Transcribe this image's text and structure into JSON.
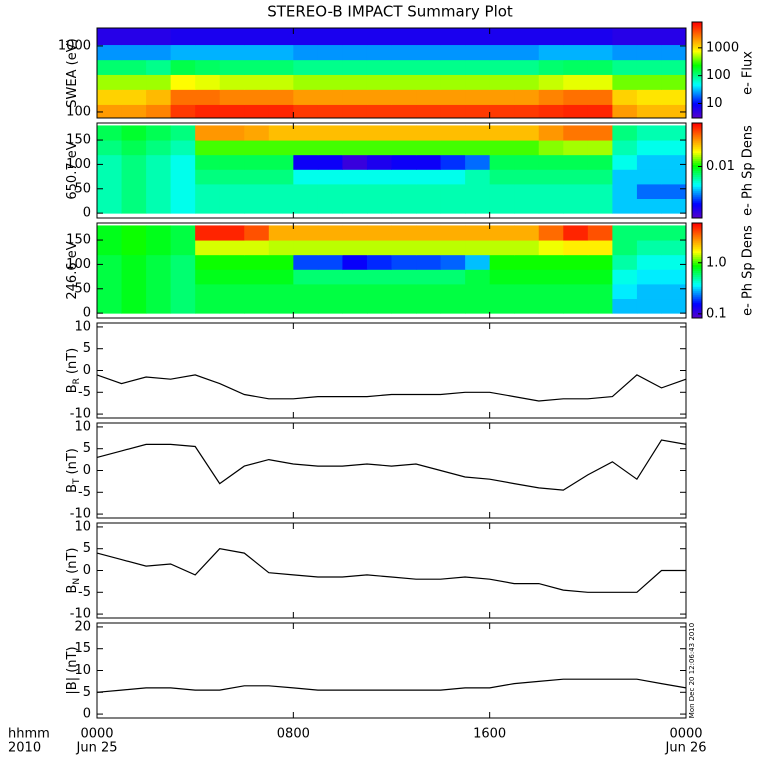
{
  "title": "STEREO-B IMPACT Summary Plot",
  "stamp": "Mon Dec 20 12:06:43 2010",
  "time": {
    "xlim": [
      0,
      24
    ],
    "edges": [
      0,
      1,
      2,
      3,
      4,
      5,
      6,
      7,
      8,
      9,
      10,
      11,
      12,
      13,
      14,
      15,
      16,
      17,
      18,
      19,
      20,
      21,
      22,
      23,
      24
    ],
    "xticks": [
      {
        "value": 0,
        "label": "0000"
      },
      {
        "value": 8,
        "label": "0800"
      },
      {
        "value": 16,
        "label": "1600"
      },
      {
        "value": 24,
        "label": "0000"
      }
    ],
    "dates": [
      "Jun 25",
      "Jun 26"
    ],
    "corner": [
      "hhmm",
      "2010"
    ]
  },
  "chart_data": [
    {
      "type": "heatmap",
      "ylabel": "SWEA (eV)",
      "ylog": true,
      "ylim": [
        81,
        1870
      ],
      "yticks": [
        100,
        1000
      ],
      "ybins": [
        81,
        130,
        220,
        370,
        620,
        1050,
        1870
      ],
      "values": [
        [
          2000,
          2000,
          2500,
          5000,
          6000,
          6000,
          6000,
          6000,
          5000,
          5000,
          5000,
          5000,
          5000,
          5000,
          5000,
          5000,
          5000,
          5000,
          5500,
          6000,
          6000,
          2000,
          1500,
          1500
        ],
        [
          1200,
          1200,
          1500,
          3000,
          3000,
          2500,
          2500,
          2500,
          2000,
          2000,
          2000,
          2000,
          2000,
          2000,
          2000,
          2000,
          2000,
          2000,
          2500,
          3000,
          3000,
          1200,
          1000,
          1000
        ],
        [
          500,
          500,
          500,
          800,
          700,
          600,
          600,
          600,
          500,
          500,
          500,
          500,
          500,
          500,
          500,
          500,
          500,
          500,
          600,
          700,
          700,
          400,
          400,
          400
        ],
        [
          120,
          120,
          100,
          150,
          130,
          120,
          120,
          120,
          100,
          100,
          100,
          100,
          100,
          100,
          100,
          100,
          100,
          100,
          120,
          130,
          130,
          100,
          100,
          100
        ],
        [
          25,
          25,
          25,
          30,
          30,
          30,
          30,
          30,
          25,
          25,
          25,
          25,
          25,
          25,
          25,
          25,
          25,
          25,
          30,
          30,
          30,
          25,
          25,
          25
        ],
        [
          6,
          6,
          6,
          7,
          7,
          7,
          7,
          7,
          7,
          7,
          7,
          7,
          7,
          7,
          7,
          7,
          7,
          7,
          7,
          7,
          7,
          6,
          6,
          6
        ]
      ],
      "clog": true,
      "clim": [
        3,
        8500
      ],
      "cticks": [
        10,
        100,
        1000
      ],
      "clabel": "e- Flux"
    },
    {
      "type": "heatmap",
      "ylabel": "650.7 eV",
      "ylog": false,
      "ylim": [
        -10,
        185
      ],
      "yticks": [
        0,
        50,
        100,
        150
      ],
      "ybins": [
        0,
        30,
        60,
        90,
        120,
        150,
        180
      ],
      "values": [
        [
          0.006,
          0.007,
          0.006,
          0.005,
          0.006,
          0.006,
          0.006,
          0.006,
          0.006,
          0.006,
          0.006,
          0.006,
          0.006,
          0.006,
          0.006,
          0.006,
          0.006,
          0.006,
          0.006,
          0.006,
          0.006,
          0.004,
          0.004,
          0.004
        ],
        [
          0.006,
          0.007,
          0.006,
          0.005,
          0.006,
          0.006,
          0.006,
          0.006,
          0.006,
          0.006,
          0.006,
          0.006,
          0.006,
          0.006,
          0.006,
          0.006,
          0.006,
          0.006,
          0.006,
          0.006,
          0.006,
          0.004,
          0.003,
          0.003
        ],
        [
          0.006,
          0.007,
          0.006,
          0.005,
          0.007,
          0.007,
          0.007,
          0.007,
          0.005,
          0.005,
          0.005,
          0.005,
          0.005,
          0.005,
          0.005,
          0.006,
          0.007,
          0.007,
          0.007,
          0.007,
          0.007,
          0.004,
          0.004,
          0.004
        ],
        [
          0.006,
          0.007,
          0.006,
          0.005,
          0.008,
          0.008,
          0.008,
          0.008,
          0.002,
          0.002,
          0.0015,
          0.0018,
          0.002,
          0.002,
          0.0025,
          0.003,
          0.008,
          0.008,
          0.008,
          0.008,
          0.008,
          0.005,
          0.004,
          0.004
        ],
        [
          0.007,
          0.008,
          0.007,
          0.006,
          0.012,
          0.012,
          0.012,
          0.012,
          0.012,
          0.012,
          0.012,
          0.012,
          0.012,
          0.012,
          0.012,
          0.012,
          0.012,
          0.012,
          0.014,
          0.015,
          0.015,
          0.006,
          0.005,
          0.005
        ],
        [
          0.008,
          0.009,
          0.008,
          0.007,
          0.03,
          0.03,
          0.028,
          0.025,
          0.025,
          0.025,
          0.025,
          0.025,
          0.025,
          0.025,
          0.025,
          0.025,
          0.025,
          0.025,
          0.03,
          0.035,
          0.035,
          0.007,
          0.006,
          0.006
        ]
      ],
      "clog": true,
      "clim": [
        0.0012,
        0.06
      ],
      "cticks": [
        0.01
      ],
      "clabel": "e- Ph Sp Dens"
    },
    {
      "type": "heatmap",
      "ylabel": "246.6 eV",
      "ylog": false,
      "ylim": [
        -10,
        185
      ],
      "yticks": [
        0,
        50,
        100,
        150
      ],
      "ybins": [
        0,
        30,
        60,
        90,
        120,
        150,
        180
      ],
      "values": [
        [
          0.7,
          0.8,
          0.7,
          0.6,
          0.7,
          0.7,
          0.7,
          0.7,
          0.7,
          0.7,
          0.7,
          0.7,
          0.7,
          0.7,
          0.7,
          0.7,
          0.7,
          0.7,
          0.7,
          0.7,
          0.7,
          0.3,
          0.3,
          0.3
        ],
        [
          0.7,
          0.8,
          0.7,
          0.6,
          0.7,
          0.7,
          0.7,
          0.7,
          0.7,
          0.7,
          0.7,
          0.7,
          0.7,
          0.7,
          0.7,
          0.7,
          0.7,
          0.7,
          0.7,
          0.7,
          0.7,
          0.35,
          0.3,
          0.3
        ],
        [
          0.7,
          0.8,
          0.7,
          0.6,
          0.8,
          0.8,
          0.8,
          0.8,
          0.6,
          0.6,
          0.6,
          0.6,
          0.6,
          0.6,
          0.6,
          0.7,
          0.8,
          0.8,
          0.8,
          0.8,
          0.8,
          0.4,
          0.35,
          0.35
        ],
        [
          0.7,
          0.8,
          0.7,
          0.6,
          0.9,
          0.9,
          0.9,
          0.9,
          0.2,
          0.2,
          0.15,
          0.18,
          0.2,
          0.2,
          0.22,
          0.3,
          0.9,
          0.9,
          0.9,
          0.9,
          0.9,
          0.5,
          0.4,
          0.4
        ],
        [
          0.8,
          0.9,
          0.8,
          0.7,
          1.5,
          1.5,
          1.5,
          1.4,
          1.4,
          1.4,
          1.4,
          1.4,
          1.4,
          1.4,
          1.4,
          1.4,
          1.4,
          1.4,
          1.6,
          1.8,
          1.8,
          0.6,
          0.5,
          0.5
        ],
        [
          0.8,
          0.9,
          0.8,
          0.7,
          5,
          5,
          4,
          2.5,
          2.5,
          2.5,
          2.5,
          2.5,
          2.5,
          2.5,
          2.5,
          2.5,
          2.5,
          2.5,
          3.5,
          5,
          4,
          0.6,
          0.6,
          0.6
        ]
      ],
      "clog": true,
      "clim": [
        0.083,
        6
      ],
      "cticks": [
        0.1,
        {
          "value": 1,
          "label": "1.0"
        }
      ],
      "clabel": "e- Ph Sp Dens"
    },
    {
      "type": "line",
      "ylabel": "B",
      "ylabel_sub": "R",
      "ylabel_unit": "(nT)",
      "ylim": [
        -10.9,
        10.9
      ],
      "yticks": [
        -10,
        -5,
        0,
        5,
        10
      ],
      "color": "#000000",
      "values": [
        -1,
        -3,
        -1.5,
        -2,
        -1,
        -3,
        -5.5,
        -6.5,
        -6.5,
        -6,
        -6,
        -6,
        -5.5,
        -5.5,
        -5.5,
        -5,
        -5,
        -6,
        -7,
        -6.5,
        -6.5,
        -6,
        -1,
        -4,
        -2
      ]
    },
    {
      "type": "line",
      "ylabel": "B",
      "ylabel_sub": "T",
      "ylabel_unit": "(nT)",
      "ylim": [
        -10.9,
        10.9
      ],
      "yticks": [
        -10,
        -5,
        0,
        5,
        10
      ],
      "color": "#000000",
      "values": [
        3,
        4.5,
        6,
        6,
        5.5,
        -3,
        1,
        2.5,
        1.5,
        1,
        1,
        1.5,
        1,
        1.5,
        0,
        -1.5,
        -2,
        -3,
        -4,
        -4.5,
        -1,
        2,
        -2,
        7,
        6
      ]
    },
    {
      "type": "line",
      "ylabel": "B",
      "ylabel_sub": "N",
      "ylabel_unit": "(nT)",
      "ylim": [
        -10.9,
        10.9
      ],
      "yticks": [
        -10,
        -5,
        0,
        5,
        10
      ],
      "color": "#000000",
      "values": [
        4,
        2.5,
        1,
        1.5,
        -1,
        5,
        4,
        -0.5,
        -1,
        -1.5,
        -1.5,
        -1,
        -1.5,
        -2,
        -2,
        -1.5,
        -2,
        -3,
        -3,
        -4.5,
        -5,
        -5,
        -5,
        0,
        0
      ]
    },
    {
      "type": "line",
      "ylabel": "|B| (nT)",
      "ylim": [
        -0.9,
        20.9
      ],
      "yticks": [
        0,
        5,
        10,
        15,
        20
      ],
      "color": "#000000",
      "values": [
        5,
        5.5,
        6,
        6,
        5.5,
        5.5,
        6.5,
        6.5,
        6,
        5.5,
        5.5,
        5.5,
        5.5,
        5.5,
        5.5,
        6,
        6,
        7,
        7.5,
        8,
        8,
        8,
        8,
        7,
        6
      ]
    }
  ]
}
